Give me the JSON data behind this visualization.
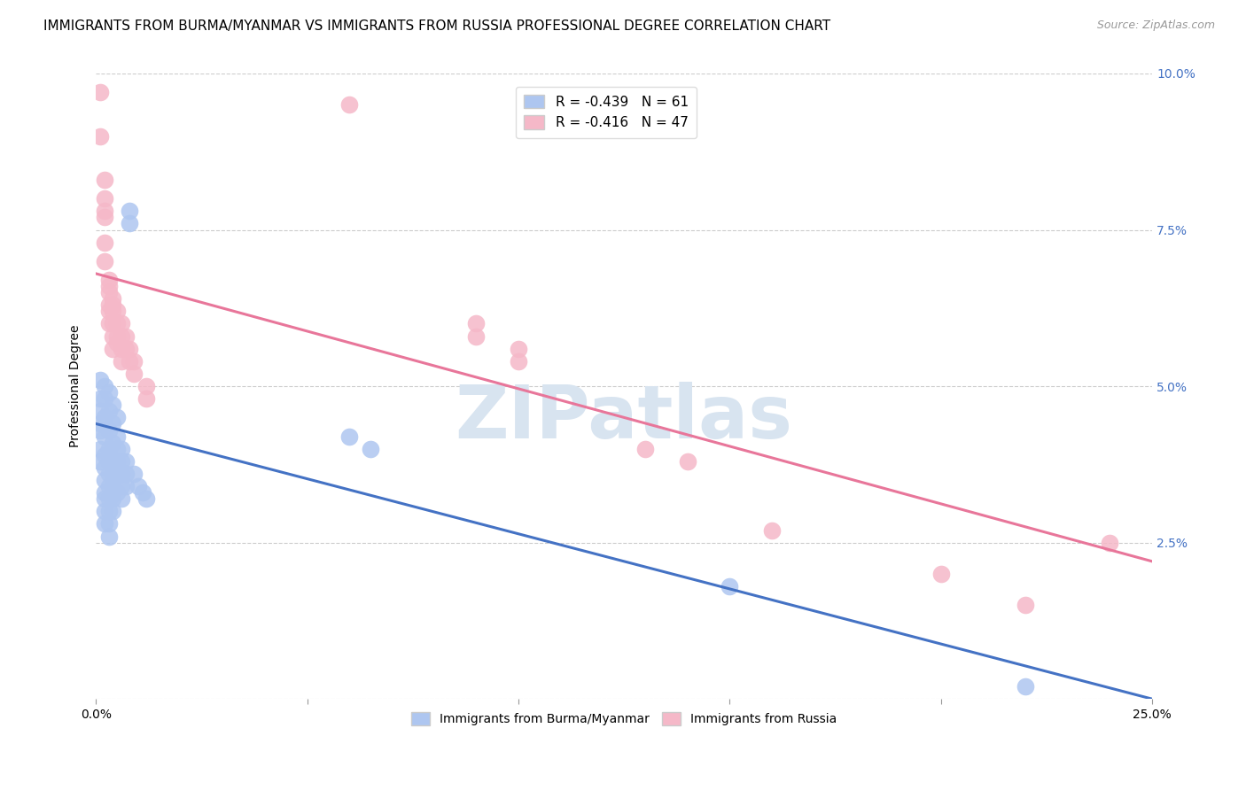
{
  "title": "IMMIGRANTS FROM BURMA/MYANMAR VS IMMIGRANTS FROM RUSSIA PROFESSIONAL DEGREE CORRELATION CHART",
  "source": "Source: ZipAtlas.com",
  "ylabel": "Professional Degree",
  "x_min": 0.0,
  "x_max": 0.25,
  "y_min": 0.0,
  "y_max": 0.1,
  "color_blue": "#aec6f0",
  "color_pink": "#f5b8c8",
  "line_blue": "#4472c4",
  "line_pink": "#e8769a",
  "watermark_text": "ZIPatlas",
  "watermark_color": "#d8e4f0",
  "legend_top": [
    {
      "label": "R = -0.439   N = 61",
      "color": "#aec6f0"
    },
    {
      "label": "R = -0.416   N = 47",
      "color": "#f5b8c8"
    }
  ],
  "legend_bottom_labels": [
    "Immigrants from Burma/Myanmar",
    "Immigrants from Russia"
  ],
  "legend_bottom_colors": [
    "#aec6f0",
    "#f5b8c8"
  ],
  "blue_scatter": [
    [
      0.001,
      0.051
    ],
    [
      0.001,
      0.048
    ],
    [
      0.001,
      0.046
    ],
    [
      0.001,
      0.044
    ],
    [
      0.001,
      0.043
    ],
    [
      0.001,
      0.04
    ],
    [
      0.001,
      0.038
    ],
    [
      0.002,
      0.05
    ],
    [
      0.002,
      0.048
    ],
    [
      0.002,
      0.045
    ],
    [
      0.002,
      0.042
    ],
    [
      0.002,
      0.039
    ],
    [
      0.002,
      0.037
    ],
    [
      0.002,
      0.035
    ],
    [
      0.002,
      0.033
    ],
    [
      0.002,
      0.032
    ],
    [
      0.002,
      0.03
    ],
    [
      0.002,
      0.028
    ],
    [
      0.003,
      0.049
    ],
    [
      0.003,
      0.046
    ],
    [
      0.003,
      0.043
    ],
    [
      0.003,
      0.04
    ],
    [
      0.003,
      0.038
    ],
    [
      0.003,
      0.036
    ],
    [
      0.003,
      0.034
    ],
    [
      0.003,
      0.032
    ],
    [
      0.003,
      0.03
    ],
    [
      0.003,
      0.028
    ],
    [
      0.003,
      0.026
    ],
    [
      0.004,
      0.047
    ],
    [
      0.004,
      0.044
    ],
    [
      0.004,
      0.041
    ],
    [
      0.004,
      0.038
    ],
    [
      0.004,
      0.036
    ],
    [
      0.004,
      0.034
    ],
    [
      0.004,
      0.032
    ],
    [
      0.004,
      0.03
    ],
    [
      0.005,
      0.045
    ],
    [
      0.005,
      0.042
    ],
    [
      0.005,
      0.04
    ],
    [
      0.005,
      0.038
    ],
    [
      0.005,
      0.036
    ],
    [
      0.005,
      0.033
    ],
    [
      0.006,
      0.04
    ],
    [
      0.006,
      0.038
    ],
    [
      0.006,
      0.036
    ],
    [
      0.006,
      0.034
    ],
    [
      0.006,
      0.032
    ],
    [
      0.007,
      0.038
    ],
    [
      0.007,
      0.036
    ],
    [
      0.007,
      0.034
    ],
    [
      0.008,
      0.078
    ],
    [
      0.008,
      0.076
    ],
    [
      0.009,
      0.036
    ],
    [
      0.01,
      0.034
    ],
    [
      0.011,
      0.033
    ],
    [
      0.012,
      0.032
    ],
    [
      0.06,
      0.042
    ],
    [
      0.065,
      0.04
    ],
    [
      0.15,
      0.018
    ],
    [
      0.22,
      0.002
    ]
  ],
  "pink_scatter": [
    [
      0.001,
      0.097
    ],
    [
      0.001,
      0.09
    ],
    [
      0.002,
      0.083
    ],
    [
      0.002,
      0.08
    ],
    [
      0.002,
      0.078
    ],
    [
      0.002,
      0.077
    ],
    [
      0.002,
      0.073
    ],
    [
      0.002,
      0.07
    ],
    [
      0.003,
      0.067
    ],
    [
      0.003,
      0.066
    ],
    [
      0.003,
      0.065
    ],
    [
      0.003,
      0.063
    ],
    [
      0.003,
      0.062
    ],
    [
      0.003,
      0.06
    ],
    [
      0.004,
      0.064
    ],
    [
      0.004,
      0.063
    ],
    [
      0.004,
      0.062
    ],
    [
      0.004,
      0.06
    ],
    [
      0.004,
      0.058
    ],
    [
      0.004,
      0.056
    ],
    [
      0.005,
      0.062
    ],
    [
      0.005,
      0.06
    ],
    [
      0.005,
      0.058
    ],
    [
      0.005,
      0.057
    ],
    [
      0.006,
      0.06
    ],
    [
      0.006,
      0.058
    ],
    [
      0.006,
      0.056
    ],
    [
      0.006,
      0.054
    ],
    [
      0.007,
      0.058
    ],
    [
      0.007,
      0.056
    ],
    [
      0.008,
      0.056
    ],
    [
      0.008,
      0.054
    ],
    [
      0.009,
      0.054
    ],
    [
      0.009,
      0.052
    ],
    [
      0.012,
      0.05
    ],
    [
      0.012,
      0.048
    ],
    [
      0.06,
      0.095
    ],
    [
      0.09,
      0.06
    ],
    [
      0.09,
      0.058
    ],
    [
      0.1,
      0.056
    ],
    [
      0.1,
      0.054
    ],
    [
      0.13,
      0.04
    ],
    [
      0.14,
      0.038
    ],
    [
      0.16,
      0.027
    ],
    [
      0.2,
      0.02
    ],
    [
      0.22,
      0.015
    ],
    [
      0.24,
      0.025
    ]
  ],
  "background_color": "#ffffff",
  "title_fontsize": 11,
  "source_fontsize": 9
}
